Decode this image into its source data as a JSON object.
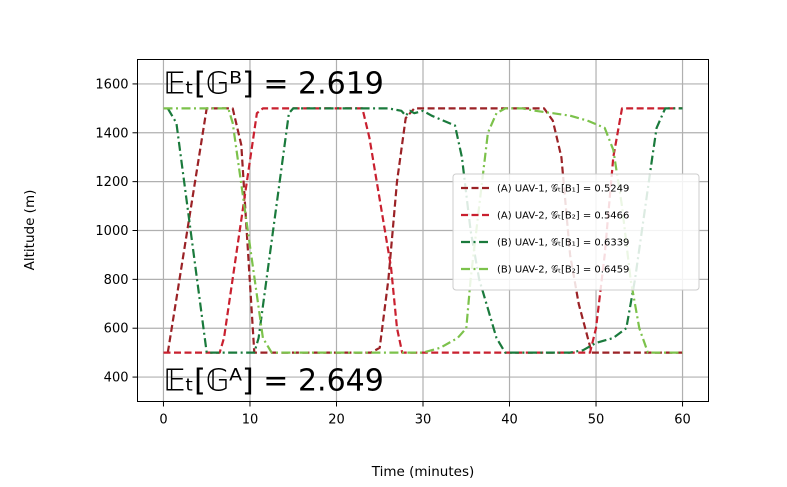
{
  "chart_data": {
    "type": "line",
    "title": "",
    "xlabel": "Time (minutes)",
    "ylabel": "Altitude (m)",
    "xlim": [
      -3,
      63
    ],
    "ylim": [
      300,
      1700
    ],
    "xticks": [
      0,
      10,
      20,
      30,
      40,
      50,
      60
    ],
    "yticks": [
      400,
      600,
      800,
      1000,
      1200,
      1400,
      1600
    ],
    "grid": true,
    "legend_position": "center-right",
    "annotations": [
      {
        "text": "𝔼ₜ[𝔾ᴮ] = 2.619",
        "x": 0,
        "y": 1610
      },
      {
        "text": "𝔼ₜ[𝔾ᴬ] = 2.649",
        "x": 0,
        "y": 395
      }
    ],
    "series": [
      {
        "name": "(A) UAV-1, 𝒢ₜ[B₁] = 0.5249",
        "color": "#9b2226",
        "style": "dashed",
        "x": [
          0.5,
          1.5,
          5,
          6,
          7,
          8,
          9,
          9.8,
          10.5,
          13,
          20,
          24,
          25,
          26,
          27,
          28,
          29,
          30,
          44,
          45,
          46,
          47,
          48,
          49.5,
          60
        ],
        "y": [
          500,
          720,
          1500,
          1500,
          1500,
          1500,
          1350,
          900,
          500,
          500,
          500,
          500,
          520,
          800,
          1200,
          1460,
          1500,
          1500,
          1500,
          1450,
          1300,
          900,
          700,
          500,
          500
        ]
      },
      {
        "name": "(A) UAV-2, 𝒢ₜ[B₂] = 0.5466",
        "color": "#c9202f",
        "style": "dashed",
        "x": [
          0,
          6.5,
          7,
          10.8,
          11.5,
          23,
          23.8,
          26.3,
          27,
          27.6,
          28.5,
          29.5,
          46,
          49.3,
          50,
          51,
          52,
          53,
          60
        ],
        "y": [
          500,
          500,
          560,
          1480,
          1500,
          1500,
          1380,
          850,
          600,
          500,
          500,
          500,
          500,
          500,
          600,
          900,
          1300,
          1500,
          1500
        ]
      },
      {
        "name": "(B) UAV-1, 𝒢ₜ[B₁] = 0.6339",
        "color": "#1a7a3c",
        "style": "dashdot",
        "x": [
          0.5,
          1.5,
          5,
          7,
          10.5,
          11,
          14.5,
          15,
          20,
          26,
          27.5,
          28,
          28.5,
          29,
          30,
          31,
          33,
          33.7,
          34.5,
          35.5,
          36.5,
          37.5,
          38.5,
          39.5,
          40,
          47,
          48.5,
          50,
          52,
          53.5,
          54.5,
          56.5,
          57,
          58,
          60
        ],
        "y": [
          1500,
          1440,
          500,
          500,
          500,
          560,
          1480,
          1500,
          1500,
          1500,
          1490,
          1470,
          1490,
          1480,
          1490,
          1470,
          1440,
          1430,
          1300,
          1000,
          800,
          680,
          560,
          500,
          500,
          500,
          510,
          540,
          560,
          600,
          800,
          1300,
          1420,
          1500,
          1500
        ]
      },
      {
        "name": "(B) UAV-2, 𝒢ₜ[B₂] = 0.6459",
        "color": "#7cc24b",
        "style": "dashdot",
        "x": [
          0,
          7.5,
          8,
          11.5,
          12.5,
          17,
          28,
          30,
          32,
          34,
          35,
          35.5,
          36.5,
          37.5,
          38.5,
          39.5,
          40,
          41.5,
          43,
          45,
          47,
          49,
          51,
          52,
          53,
          54,
          55,
          56,
          57.5,
          60
        ],
        "y": [
          1500,
          1500,
          1440,
          560,
          500,
          500,
          500,
          500,
          520,
          560,
          600,
          800,
          1100,
          1400,
          1480,
          1500,
          1500,
          1500,
          1490,
          1480,
          1470,
          1450,
          1420,
          1330,
          1100,
          800,
          600,
          500,
          500,
          500
        ]
      }
    ]
  }
}
